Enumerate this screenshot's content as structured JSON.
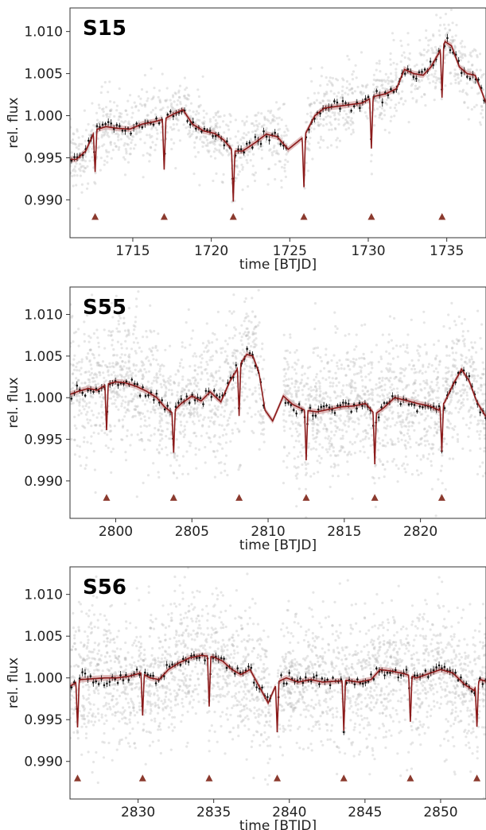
{
  "colors": {
    "model": "#8b1a1a",
    "band": "#c98b8b",
    "binned": "#111111",
    "raw": "#b8b8b8",
    "transit_marker": "#8b3a2e"
  },
  "chart_data": [
    {
      "type": "scatter",
      "title": "S15",
      "xlabel": "time [BTJD]",
      "ylabel": "rel. flux",
      "xlim": [
        1711.0,
        1737.5
      ],
      "ylim": [
        0.9855,
        1.0128
      ],
      "xticks": [
        1715,
        1720,
        1725,
        1730,
        1735
      ],
      "yticks": [
        0.99,
        0.995,
        1.0,
        1.005,
        1.01
      ],
      "xtick_labels": [
        "1715",
        "1720",
        "1725",
        "1730",
        "1735"
      ],
      "ytick_labels": [
        "0.990",
        "0.995",
        "1.000",
        "1.005",
        "1.010"
      ],
      "raw_scatter": 0.0022,
      "gaps": [
        [
          1724.9,
          1725.9
        ]
      ],
      "trend": [
        [
          1711.4,
          0.9948
        ],
        [
          1712.0,
          0.9958
        ],
        [
          1712.6,
          0.9983
        ],
        [
          1713.3,
          0.9987
        ],
        [
          1714.0,
          0.9985
        ],
        [
          1714.8,
          0.9984
        ],
        [
          1715.6,
          0.999
        ],
        [
          1716.4,
          0.9993
        ],
        [
          1717.0,
          0.9996
        ],
        [
          1717.6,
          1.0002
        ],
        [
          1718.2,
          1.0007
        ],
        [
          1718.8,
          0.999
        ],
        [
          1719.5,
          0.9982
        ],
        [
          1720.2,
          0.9979
        ],
        [
          1720.8,
          0.9971
        ],
        [
          1721.4,
          0.9958
        ],
        [
          1722.0,
          0.9958
        ],
        [
          1722.8,
          0.9968
        ],
        [
          1723.5,
          0.9978
        ],
        [
          1724.2,
          0.9975
        ],
        [
          1724.9,
          0.996
        ],
        [
          1725.9,
          0.9975
        ],
        [
          1726.6,
          1.0
        ],
        [
          1727.2,
          1.0009
        ],
        [
          1728.0,
          1.0011
        ],
        [
          1728.8,
          1.0013
        ],
        [
          1729.6,
          1.0015
        ],
        [
          1730.4,
          1.0023
        ],
        [
          1731.1,
          1.0026
        ],
        [
          1731.8,
          1.0032
        ],
        [
          1732.3,
          1.0055
        ],
        [
          1732.9,
          1.005
        ],
        [
          1733.5,
          1.0048
        ],
        [
          1734.0,
          1.0058
        ],
        [
          1734.6,
          1.0078
        ],
        [
          1734.9,
          1.0088
        ],
        [
          1735.3,
          1.0083
        ],
        [
          1735.8,
          1.0058
        ],
        [
          1736.3,
          1.005
        ],
        [
          1736.8,
          1.0048
        ],
        [
          1737.2,
          1.003
        ],
        [
          1737.5,
          1.0015
        ]
      ],
      "transits": [
        {
          "t": 1712.6,
          "depth": 0.005,
          "width": 0.11
        },
        {
          "t": 1717.0,
          "depth": 0.006,
          "width": 0.11
        },
        {
          "t": 1721.4,
          "depth": 0.006,
          "width": 0.11
        },
        {
          "t": 1725.9,
          "depth": 0.006,
          "width": 0.11
        },
        {
          "t": 1730.2,
          "depth": 0.006,
          "width": 0.11
        },
        {
          "t": 1734.7,
          "depth": 0.006,
          "width": 0.11
        }
      ],
      "transit_marker_y": 0.988
    },
    {
      "type": "scatter",
      "title": "S55",
      "xlabel": "time [BTJD]",
      "ylabel": "rel. flux",
      "xlim": [
        2797.0,
        2824.3
      ],
      "ylim": [
        0.9855,
        1.0133
      ],
      "xticks": [
        2800,
        2805,
        2810,
        2815,
        2820
      ],
      "yticks": [
        0.99,
        0.995,
        1.0,
        1.005,
        1.01
      ],
      "xtick_labels": [
        "2800",
        "2805",
        "2810",
        "2815",
        "2820"
      ],
      "ytick_labels": [
        "0.990",
        "0.995",
        "1.000",
        "1.005",
        "1.010"
      ],
      "raw_scatter": 0.004,
      "gaps": [
        [
          2809.8,
          2811.0
        ]
      ],
      "trend": [
        [
          2797.0,
          1.0004
        ],
        [
          2797.6,
          1.0008
        ],
        [
          2798.2,
          1.0011
        ],
        [
          2798.8,
          1.0009
        ],
        [
          2799.4,
          1.0016
        ],
        [
          2800.0,
          1.0019
        ],
        [
          2800.6,
          1.0018
        ],
        [
          2801.3,
          1.0014
        ],
        [
          2802.0,
          1.0008
        ],
        [
          2802.7,
          1.0
        ],
        [
          2803.2,
          0.9989
        ],
        [
          2803.7,
          0.9982
        ],
        [
          2804.3,
          0.9993
        ],
        [
          2805.0,
          1.0002
        ],
        [
          2805.6,
          0.9996
        ],
        [
          2806.2,
          1.0007
        ],
        [
          2806.9,
          0.9995
        ],
        [
          2807.5,
          1.002
        ],
        [
          2808.1,
          1.0038
        ],
        [
          2808.6,
          1.0052
        ],
        [
          2809.0,
          1.005
        ],
        [
          2809.4,
          1.003
        ],
        [
          2809.8,
          0.9985
        ],
        [
          2810.3,
          0.9972
        ],
        [
          2811.0,
          1.0002
        ],
        [
          2811.6,
          0.9992
        ],
        [
          2812.4,
          0.9985
        ],
        [
          2813.2,
          0.9983
        ],
        [
          2814.0,
          0.9986
        ],
        [
          2814.8,
          0.9989
        ],
        [
          2815.6,
          0.999
        ],
        [
          2816.4,
          0.9993
        ],
        [
          2817.0,
          0.998
        ],
        [
          2817.6,
          0.9988
        ],
        [
          2818.3,
          1.0
        ],
        [
          2819.0,
          0.9997
        ],
        [
          2819.8,
          0.9993
        ],
        [
          2820.6,
          0.999
        ],
        [
          2821.2,
          0.9985
        ],
        [
          2821.6,
          0.9995
        ],
        [
          2822.2,
          1.0018
        ],
        [
          2822.7,
          1.0034
        ],
        [
          2823.2,
          1.002
        ],
        [
          2823.7,
          0.9995
        ],
        [
          2824.3,
          0.9977
        ]
      ],
      "transits": [
        {
          "t": 2799.4,
          "depth": 0.0055,
          "width": 0.11
        },
        {
          "t": 2803.8,
          "depth": 0.005,
          "width": 0.11
        },
        {
          "t": 2808.1,
          "depth": 0.006,
          "width": 0.11
        },
        {
          "t": 2812.5,
          "depth": 0.006,
          "width": 0.11
        },
        {
          "t": 2817.0,
          "depth": 0.006,
          "width": 0.11
        },
        {
          "t": 2821.4,
          "depth": 0.0055,
          "width": 0.11
        }
      ],
      "transit_marker_y": 0.988
    },
    {
      "type": "scatter",
      "title": "S56",
      "xlabel": "time [BTJD]",
      "ylabel": "rel. flux",
      "xlim": [
        2825.5,
        2853.0
      ],
      "ylim": [
        0.9855,
        1.0133
      ],
      "xticks": [
        2830,
        2835,
        2840,
        2845,
        2850
      ],
      "yticks": [
        0.99,
        0.995,
        1.0,
        1.005,
        1.01
      ],
      "xtick_labels": [
        "2830",
        "2835",
        "2840",
        "2845",
        "2850"
      ],
      "ytick_labels": [
        "0.990",
        "0.995",
        "1.000",
        "1.005",
        "1.010"
      ],
      "raw_scatter": 0.004,
      "gaps": [
        [
          2838.8,
          2839.2
        ]
      ],
      "trend": [
        [
          2825.5,
          0.999
        ],
        [
          2826.2,
          0.9998
        ],
        [
          2827.0,
          0.9999
        ],
        [
          2827.8,
          1.0
        ],
        [
          2828.6,
          1.0
        ],
        [
          2829.4,
          1.0002
        ],
        [
          2830.2,
          1.0006
        ],
        [
          2830.8,
          1.0
        ],
        [
          2831.4,
          0.9998
        ],
        [
          2832.0,
          1.001
        ],
        [
          2832.7,
          1.0018
        ],
        [
          2833.4,
          1.0024
        ],
        [
          2834.2,
          1.0027
        ],
        [
          2835.0,
          1.0025
        ],
        [
          2835.6,
          1.002
        ],
        [
          2836.2,
          1.001
        ],
        [
          2836.8,
          1.0004
        ],
        [
          2837.4,
          1.001
        ],
        [
          2838.0,
          0.999
        ],
        [
          2838.6,
          0.997
        ],
        [
          2839.2,
          0.9995
        ],
        [
          2839.8,
          1.0
        ],
        [
          2840.6,
          0.9995
        ],
        [
          2841.4,
          0.9998
        ],
        [
          2842.2,
          0.9995
        ],
        [
          2843.0,
          0.9996
        ],
        [
          2843.8,
          0.9997
        ],
        [
          2844.6,
          0.9995
        ],
        [
          2845.4,
          0.9998
        ],
        [
          2846.0,
          1.001
        ],
        [
          2846.8,
          1.0008
        ],
        [
          2847.6,
          1.0005
        ],
        [
          2848.4,
          1.0
        ],
        [
          2849.2,
          1.0005
        ],
        [
          2850.0,
          1.001
        ],
        [
          2850.8,
          1.0006
        ],
        [
          2851.6,
          0.9992
        ],
        [
          2852.2,
          0.9985
        ],
        [
          2852.6,
          0.9998
        ],
        [
          2853.0,
          0.9996
        ]
      ],
      "transits": [
        {
          "t": 2826.0,
          "depth": 0.0055,
          "width": 0.11
        },
        {
          "t": 2830.3,
          "depth": 0.005,
          "width": 0.11
        },
        {
          "t": 2834.7,
          "depth": 0.006,
          "width": 0.11
        },
        {
          "t": 2839.2,
          "depth": 0.006,
          "width": 0.11
        },
        {
          "t": 2843.6,
          "depth": 0.006,
          "width": 0.11
        },
        {
          "t": 2848.0,
          "depth": 0.0055,
          "width": 0.11
        },
        {
          "t": 2852.4,
          "depth": 0.005,
          "width": 0.11
        }
      ],
      "transit_marker_y": 0.988
    }
  ]
}
